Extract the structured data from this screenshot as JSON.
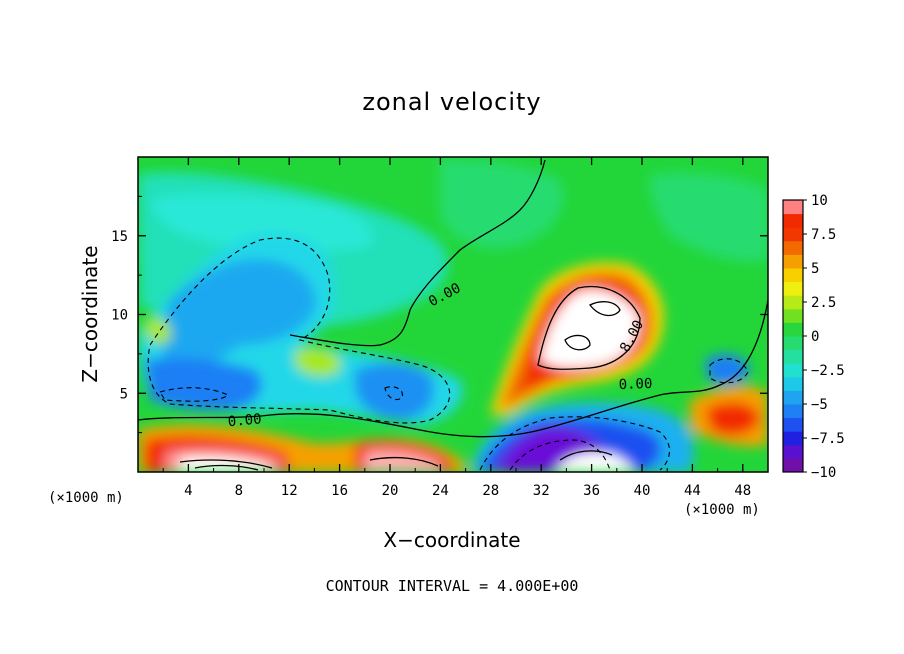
{
  "chart_data": {
    "type": "heatmap",
    "title": "zonal velocity",
    "xlabel": "X−coordinate",
    "ylabel": "Z−coordinate",
    "x_unit_note": "(×1000 m)",
    "footnote": "CONTOUR INTERVAL = 4.000E+00",
    "xlim": [
      0,
      50
    ],
    "ylim": [
      0,
      20
    ],
    "x_ticks": [
      4,
      8,
      12,
      16,
      20,
      24,
      28,
      32,
      36,
      40,
      44,
      48
    ],
    "y_ticks": [
      5,
      10,
      15
    ],
    "colorbar": {
      "range": [
        -10,
        10
      ],
      "ticks": [
        10,
        7.5,
        5,
        2.5,
        0,
        -2.5,
        -5,
        -7.5,
        -10
      ],
      "tick_labels": [
        "10",
        "7.5",
        "5",
        "2.5",
        "0",
        "−2.5",
        "−5",
        "−7.5",
        "−10"
      ]
    },
    "contour_labels": [
      {
        "text": "0.00",
        "x": 24.5,
        "z": 11.0
      },
      {
        "text": "0.00",
        "x": 8.5,
        "z": 3.0
      },
      {
        "text": "0.00",
        "x": 39.5,
        "z": 5.3
      },
      {
        "text": "8.00",
        "x": 39.5,
        "z": 8.5
      }
    ],
    "features": [
      {
        "x": 35.5,
        "z": 9.5,
        "value": 10,
        "note": "strong positive jet core"
      },
      {
        "x": 7,
        "z": 0.5,
        "value": 10,
        "note": "positive near surface"
      },
      {
        "x": 21,
        "z": 0.5,
        "value": 10,
        "note": "positive near surface"
      },
      {
        "x": 3,
        "z": 5,
        "value": -8,
        "note": "negative core"
      },
      {
        "x": 20,
        "z": 5,
        "value": -8,
        "note": "negative core"
      },
      {
        "x": 31,
        "z": 1.5,
        "value": -10,
        "note": "strong negative near surface"
      },
      {
        "x": 46.5,
        "z": 4,
        "value": 8,
        "note": "small positive cell"
      },
      {
        "x": 10,
        "z": 11,
        "value": -6,
        "note": "negative region aloft"
      }
    ]
  }
}
